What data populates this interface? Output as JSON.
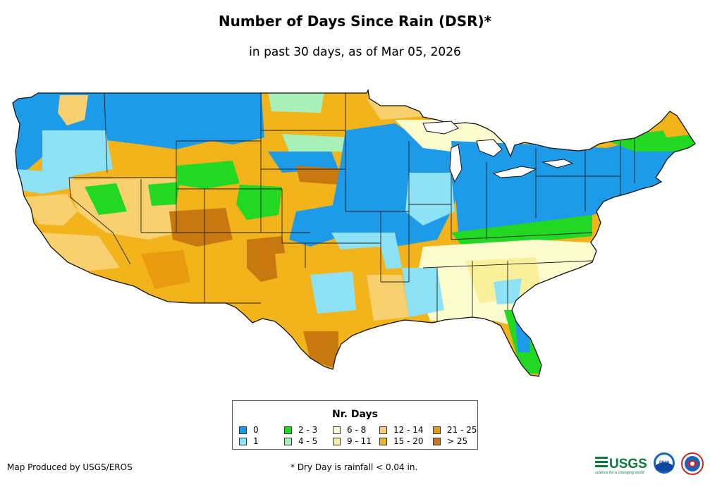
{
  "map": {
    "title": "Number of Days Since Rain (DSR)*",
    "subtitle": "in past 30 days, as of Mar 05, 2026",
    "region": "Contiguous United States"
  },
  "legend": {
    "title": "Nr. Days",
    "items": [
      {
        "label": "0",
        "color": "#1e9be8"
      },
      {
        "label": "1",
        "color": "#8de3f5"
      },
      {
        "label": "2 - 3",
        "color": "#22d822"
      },
      {
        "label": "4 - 5",
        "color": "#a8f0b8"
      },
      {
        "label": "6 - 8",
        "color": "#fdfccf"
      },
      {
        "label": "9 - 11",
        "color": "#fbf09a"
      },
      {
        "label": "12 - 14",
        "color": "#f8d070"
      },
      {
        "label": "15 - 20",
        "color": "#f2b41a"
      },
      {
        "label": "21 - 25",
        "color": "#e89b0d"
      },
      {
        "label": "> 25",
        "color": "#c7780f"
      }
    ]
  },
  "footer": {
    "credit": "Map Produced by USGS/EROS",
    "footnote": "* Dry Day is rainfall < 0.04 in."
  },
  "logos": {
    "usgs": "USGS",
    "usgs_tagline": "science for a changing world",
    "noaa": "noaa",
    "nws_icon": "nws-logo-icon"
  }
}
